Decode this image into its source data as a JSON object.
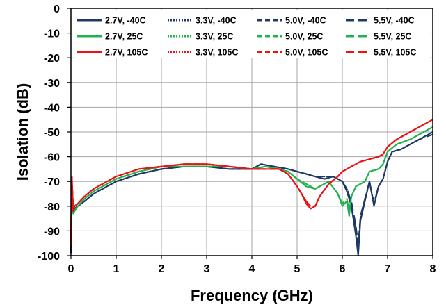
{
  "chart_data": {
    "type": "line",
    "title": "",
    "xlabel": "Frequency (GHz)",
    "ylabel": "Isolation (dB)",
    "xlim": [
      0,
      8
    ],
    "ylim": [
      -100,
      0
    ],
    "xticks": [
      "0",
      "1",
      "2",
      "3",
      "4",
      "5",
      "6",
      "7",
      "8"
    ],
    "yticks": [
      "0",
      "-10",
      "-20",
      "-30",
      "-40",
      "-50",
      "-60",
      "-70",
      "-80",
      "-90",
      "-100"
    ],
    "grid": true,
    "legend_position": "top",
    "colors": {
      "m40": "#1f3864",
      "p25": "#22b14c",
      "p105": "#ee1111",
      "grid": "#a6a6a6",
      "axis": "#000000"
    },
    "series": [
      {
        "name": "2.7V, -40C",
        "voltage": "2.7V",
        "temperature": "-40C",
        "style": "solid",
        "color": "#1f3864",
        "x": [
          0,
          0.02,
          0.05,
          0.08,
          0.15,
          0.3,
          0.5,
          0.8,
          1.0,
          1.5,
          2.0,
          2.5,
          3.0,
          3.5,
          4.0,
          4.2,
          4.5,
          4.8,
          5.0,
          5.2,
          5.4,
          5.6,
          5.8,
          6.0,
          6.1,
          6.2,
          6.3,
          6.35,
          6.4,
          6.5,
          6.6,
          6.7,
          6.8,
          6.9,
          7.0,
          7.1,
          7.3,
          7.5,
          7.7,
          8.0
        ],
        "y": [
          -99,
          -70,
          -82,
          -81,
          -80,
          -78,
          -75,
          -72,
          -70,
          -67,
          -65,
          -64,
          -64,
          -65,
          -65,
          -63,
          -64,
          -65,
          -66,
          -67,
          -68,
          -69,
          -68,
          -70,
          -74,
          -80,
          -92,
          -100,
          -86,
          -78,
          -70,
          -80,
          -72,
          -69,
          -62,
          -58,
          -57,
          -55,
          -53,
          -50
        ]
      },
      {
        "name": "3.3V, -40C",
        "voltage": "3.3V",
        "temperature": "-40C",
        "style": "dotted",
        "color": "#1f3864",
        "x": [
          0,
          0.02,
          0.05,
          0.08,
          0.15,
          0.3,
          0.5,
          0.8,
          1.0,
          1.5,
          2.0,
          2.5,
          3.0,
          3.5,
          4.0,
          4.2,
          4.5,
          4.8,
          5.0,
          5.2,
          5.4,
          5.6,
          5.8,
          6.0,
          6.1,
          6.2,
          6.3,
          6.35,
          6.4,
          6.5,
          6.6,
          6.7,
          6.8,
          6.9,
          7.0,
          7.1,
          7.3,
          7.5,
          7.7,
          8.0
        ],
        "y": [
          -98,
          -70,
          -82,
          -81,
          -80,
          -78,
          -75,
          -72,
          -70,
          -67,
          -65,
          -64,
          -64,
          -65,
          -65,
          -63,
          -64,
          -65,
          -66,
          -67,
          -68,
          -69,
          -68,
          -70,
          -74,
          -79,
          -90,
          -98,
          -85,
          -77,
          -70,
          -79,
          -72,
          -69,
          -62,
          -58,
          -57,
          -55,
          -53,
          -50
        ]
      },
      {
        "name": "5.0V, -40C",
        "voltage": "5.0V",
        "temperature": "-40C",
        "style": "dashed",
        "color": "#1f3864",
        "x": [
          0,
          0.02,
          0.05,
          0.08,
          0.15,
          0.3,
          0.5,
          0.8,
          1.0,
          1.5,
          2.0,
          2.5,
          3.0,
          3.5,
          4.0,
          4.2,
          4.5,
          4.8,
          5.0,
          5.2,
          5.4,
          5.6,
          5.8,
          6.0,
          6.1,
          6.2,
          6.3,
          6.35,
          6.4,
          6.5,
          6.6,
          6.7,
          6.8,
          6.9,
          7.0,
          7.1,
          7.3,
          7.5,
          7.7,
          8.0
        ],
        "y": [
          -97,
          -70,
          -81,
          -81,
          -80,
          -78,
          -75,
          -72,
          -70,
          -67,
          -65,
          -64,
          -64,
          -65,
          -65,
          -63,
          -64,
          -65,
          -66,
          -67,
          -68,
          -68,
          -68,
          -70,
          -73,
          -79,
          -89,
          -97,
          -85,
          -77,
          -70,
          -79,
          -72,
          -69,
          -62,
          -58,
          -57,
          -55,
          -53,
          -50
        ]
      },
      {
        "name": "5.5V, -40C",
        "voltage": "5.5V",
        "temperature": "-40C",
        "style": "longdash",
        "color": "#1f3864",
        "x": [
          0,
          0.02,
          0.05,
          0.08,
          0.15,
          0.3,
          0.5,
          0.8,
          1.0,
          1.5,
          2.0,
          2.5,
          3.0,
          3.5,
          4.0,
          4.2,
          4.5,
          4.8,
          5.0,
          5.2,
          5.4,
          5.6,
          5.8,
          6.0,
          6.1,
          6.2,
          6.3,
          6.35,
          6.4,
          6.5,
          6.6,
          6.7,
          6.8,
          6.9,
          7.0,
          7.1,
          7.3,
          7.5,
          7.7,
          8.0
        ],
        "y": [
          -97,
          -70,
          -81,
          -81,
          -80,
          -78,
          -75,
          -72,
          -70,
          -67,
          -65,
          -64,
          -64,
          -65,
          -65,
          -63,
          -64,
          -65,
          -66,
          -67,
          -68,
          -68,
          -68,
          -70,
          -73,
          -78,
          -88,
          -96,
          -84,
          -77,
          -70,
          -79,
          -72,
          -69,
          -62,
          -58,
          -57,
          -55,
          -53,
          -51
        ]
      },
      {
        "name": "2.7V, 25C",
        "voltage": "2.7V",
        "temperature": "25C",
        "style": "solid",
        "color": "#22b14c",
        "x": [
          0,
          0.02,
          0.05,
          0.08,
          0.15,
          0.3,
          0.5,
          0.8,
          1.0,
          1.5,
          2.0,
          2.5,
          3.0,
          3.5,
          4.0,
          4.3,
          4.6,
          4.8,
          5.0,
          5.2,
          5.4,
          5.5,
          5.7,
          5.9,
          6.0,
          6.1,
          6.15,
          6.2,
          6.3,
          6.5,
          6.6,
          6.8,
          6.9,
          7.0,
          7.2,
          7.5,
          7.8,
          8.0
        ],
        "y": [
          -88,
          -72,
          -83,
          -82,
          -80,
          -77,
          -74,
          -71,
          -69,
          -66,
          -64,
          -64,
          -64,
          -64,
          -65,
          -64,
          -65,
          -66,
          -69,
          -72,
          -73,
          -72,
          -70,
          -75,
          -80,
          -78,
          -84,
          -76,
          -72,
          -70,
          -66,
          -65,
          -63,
          -58,
          -55,
          -53,
          -50,
          -48
        ]
      },
      {
        "name": "3.3V, 25C",
        "voltage": "3.3V",
        "temperature": "25C",
        "style": "dotted",
        "color": "#22b14c",
        "x": [
          0,
          0.02,
          0.05,
          0.08,
          0.15,
          0.3,
          0.5,
          0.8,
          1.0,
          1.5,
          2.0,
          2.5,
          3.0,
          3.5,
          4.0,
          4.3,
          4.6,
          4.8,
          5.0,
          5.2,
          5.4,
          5.5,
          5.7,
          5.9,
          6.0,
          6.1,
          6.15,
          6.2,
          6.3,
          6.5,
          6.6,
          6.8,
          6.9,
          7.0,
          7.2,
          7.5,
          7.8,
          8.0
        ],
        "y": [
          -88,
          -72,
          -83,
          -82,
          -80,
          -77,
          -74,
          -71,
          -69,
          -66,
          -64,
          -64,
          -64,
          -64,
          -65,
          -64,
          -65,
          -66,
          -69,
          -72,
          -73,
          -72,
          -70,
          -75,
          -79,
          -78,
          -83,
          -76,
          -72,
          -70,
          -66,
          -65,
          -63,
          -58,
          -55,
          -53,
          -50,
          -48
        ]
      },
      {
        "name": "5.0V, 25C",
        "voltage": "5.0V",
        "temperature": "25C",
        "style": "dashed",
        "color": "#22b14c",
        "x": [
          0,
          0.02,
          0.05,
          0.08,
          0.15,
          0.3,
          0.5,
          0.8,
          1.0,
          1.5,
          2.0,
          2.5,
          3.0,
          3.5,
          4.0,
          4.3,
          4.6,
          4.8,
          5.0,
          5.2,
          5.4,
          5.5,
          5.7,
          5.9,
          6.0,
          6.1,
          6.15,
          6.2,
          6.3,
          6.5,
          6.6,
          6.8,
          6.9,
          7.0,
          7.2,
          7.5,
          7.8,
          8.0
        ],
        "y": [
          -87,
          -72,
          -83,
          -82,
          -80,
          -77,
          -74,
          -71,
          -69,
          -66,
          -64,
          -64,
          -64,
          -64,
          -65,
          -64,
          -65,
          -66,
          -69,
          -71,
          -73,
          -72,
          -70,
          -75,
          -79,
          -77,
          -83,
          -76,
          -72,
          -70,
          -66,
          -65,
          -63,
          -58,
          -55,
          -53,
          -50,
          -48
        ]
      },
      {
        "name": "5.5V, 25C",
        "voltage": "5.5V",
        "temperature": "25C",
        "style": "longdash",
        "color": "#22b14c",
        "x": [
          0,
          0.02,
          0.05,
          0.08,
          0.15,
          0.3,
          0.5,
          0.8,
          1.0,
          1.5,
          2.0,
          2.5,
          3.0,
          3.5,
          4.0,
          4.3,
          4.6,
          4.8,
          5.0,
          5.2,
          5.4,
          5.5,
          5.7,
          5.9,
          6.0,
          6.1,
          6.15,
          6.2,
          6.3,
          6.5,
          6.6,
          6.8,
          6.9,
          7.0,
          7.2,
          7.5,
          7.8,
          8.0
        ],
        "y": [
          -87,
          -72,
          -83,
          -82,
          -80,
          -77,
          -74,
          -71,
          -69,
          -66,
          -64,
          -64,
          -64,
          -64,
          -65,
          -64,
          -65,
          -66,
          -69,
          -71,
          -73,
          -72,
          -70,
          -75,
          -79,
          -77,
          -82,
          -76,
          -72,
          -70,
          -66,
          -65,
          -63,
          -58,
          -55,
          -53,
          -50,
          -48
        ]
      },
      {
        "name": "2.7V, 105C",
        "voltage": "2.7V",
        "temperature": "105C",
        "style": "solid",
        "color": "#ee1111",
        "x": [
          0,
          0.02,
          0.05,
          0.08,
          0.15,
          0.3,
          0.5,
          0.8,
          1.0,
          1.5,
          2.0,
          2.5,
          3.0,
          3.5,
          4.0,
          4.3,
          4.6,
          4.8,
          5.0,
          5.1,
          5.2,
          5.3,
          5.4,
          5.5,
          5.7,
          5.9,
          6.0,
          6.2,
          6.4,
          6.6,
          6.8,
          6.9,
          7.0,
          7.2,
          7.5,
          7.8,
          8.0
        ],
        "y": [
          -96,
          -68,
          -82,
          -80,
          -79,
          -76,
          -73,
          -70,
          -68,
          -65,
          -64,
          -63,
          -63,
          -64,
          -65,
          -65,
          -65,
          -67,
          -72,
          -75,
          -79,
          -81,
          -80,
          -76,
          -71,
          -68,
          -66,
          -64,
          -62,
          -61,
          -60,
          -59,
          -56,
          -53,
          -50,
          -47,
          -45
        ]
      },
      {
        "name": "3.3V, 105C",
        "voltage": "3.3V",
        "temperature": "105C",
        "style": "dotted",
        "color": "#ee1111",
        "x": [
          0,
          0.02,
          0.05,
          0.08,
          0.15,
          0.3,
          0.5,
          0.8,
          1.0,
          1.5,
          2.0,
          2.5,
          3.0,
          3.5,
          4.0,
          4.3,
          4.6,
          4.8,
          5.0,
          5.1,
          5.2,
          5.3,
          5.4,
          5.5,
          5.7,
          5.9,
          6.0,
          6.2,
          6.4,
          6.6,
          6.8,
          6.9,
          7.0,
          7.2,
          7.5,
          7.8,
          8.0
        ],
        "y": [
          -96,
          -68,
          -82,
          -80,
          -79,
          -76,
          -73,
          -70,
          -68,
          -65,
          -64,
          -63,
          -63,
          -64,
          -65,
          -65,
          -65,
          -67,
          -72,
          -75,
          -78,
          -81,
          -80,
          -76,
          -71,
          -68,
          -66,
          -64,
          -62,
          -61,
          -60,
          -59,
          -56,
          -53,
          -50,
          -47,
          -45
        ]
      },
      {
        "name": "5.0V, 105C",
        "voltage": "5.0V",
        "temperature": "105C",
        "style": "dashed",
        "color": "#ee1111",
        "x": [
          0,
          0.02,
          0.05,
          0.08,
          0.15,
          0.3,
          0.5,
          0.8,
          1.0,
          1.5,
          2.0,
          2.5,
          3.0,
          3.5,
          4.0,
          4.3,
          4.6,
          4.8,
          5.0,
          5.1,
          5.2,
          5.3,
          5.4,
          5.5,
          5.7,
          5.9,
          6.0,
          6.2,
          6.4,
          6.6,
          6.8,
          6.9,
          7.0,
          7.2,
          7.5,
          7.8,
          8.0
        ],
        "y": [
          -95,
          -68,
          -82,
          -80,
          -79,
          -76,
          -73,
          -70,
          -68,
          -65,
          -64,
          -63,
          -63,
          -64,
          -65,
          -65,
          -65,
          -67,
          -72,
          -75,
          -78,
          -80,
          -80,
          -76,
          -71,
          -68,
          -66,
          -64,
          -62,
          -61,
          -60,
          -59,
          -56,
          -53,
          -50,
          -47,
          -45
        ]
      },
      {
        "name": "5.5V, 105C",
        "voltage": "5.5V",
        "temperature": "105C",
        "style": "longdash",
        "color": "#ee1111",
        "x": [
          0,
          0.02,
          0.05,
          0.08,
          0.15,
          0.3,
          0.5,
          0.8,
          1.0,
          1.5,
          2.0,
          2.5,
          3.0,
          3.5,
          4.0,
          4.3,
          4.6,
          4.8,
          5.0,
          5.1,
          5.2,
          5.3,
          5.4,
          5.5,
          5.7,
          5.9,
          6.0,
          6.2,
          6.4,
          6.6,
          6.8,
          6.9,
          7.0,
          7.2,
          7.5,
          7.8,
          8.0
        ],
        "y": [
          -95,
          -68,
          -82,
          -80,
          -79,
          -76,
          -73,
          -70,
          -68,
          -65,
          -64,
          -63,
          -63,
          -64,
          -65,
          -65,
          -65,
          -67,
          -72,
          -75,
          -78,
          -80,
          -80,
          -76,
          -71,
          -68,
          -66,
          -64,
          -62,
          -61,
          -60,
          -59,
          -56,
          -53,
          -50,
          -47,
          -45
        ]
      }
    ]
  }
}
